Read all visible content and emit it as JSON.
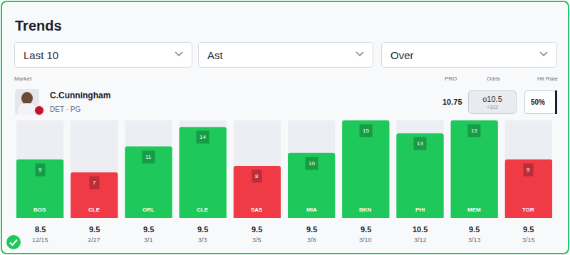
{
  "header": {
    "title": "Trends",
    "filters": [
      "Last 10",
      "Ast",
      "Over"
    ]
  },
  "market": {
    "label": "Market",
    "player": "C.Cunningham",
    "team_pos": "DET · PG",
    "pro_label": "PRO",
    "pro": 10.75,
    "odds_label": "Odds",
    "line": "o10.5",
    "price": "+102",
    "hit_rate_label": "Hit Rate",
    "hit_rate": "50%"
  },
  "chart_data": {
    "type": "bar",
    "categories": [
      "BOS",
      "CLE",
      "ORL",
      "CLE",
      "SAS",
      "MIA",
      "BKN",
      "PHI",
      "MEM",
      "TOR"
    ],
    "values": [
      9,
      7,
      11,
      14,
      8,
      10,
      15,
      13,
      15,
      9
    ],
    "colors": [
      "#1ec85a",
      "#f03a46",
      "#1ec85a",
      "#1ec85a",
      "#f03a46",
      "#1ec85a",
      "#1ec85a",
      "#1ec85a",
      "#1ec85a",
      "#f03a46"
    ],
    "lines": [
      8.5,
      9.5,
      9.5,
      9.5,
      9.5,
      9.5,
      9.5,
      10.5,
      9.5,
      9.5
    ],
    "dates": [
      "12/15",
      "2/27",
      "3/1",
      "3/3",
      "3/5",
      "3/8",
      "3/10",
      "3/12",
      "3/13",
      "3/15"
    ],
    "ylim": [
      0,
      15
    ],
    "data_labels": true,
    "tick_labels": false,
    "grid": false
  }
}
